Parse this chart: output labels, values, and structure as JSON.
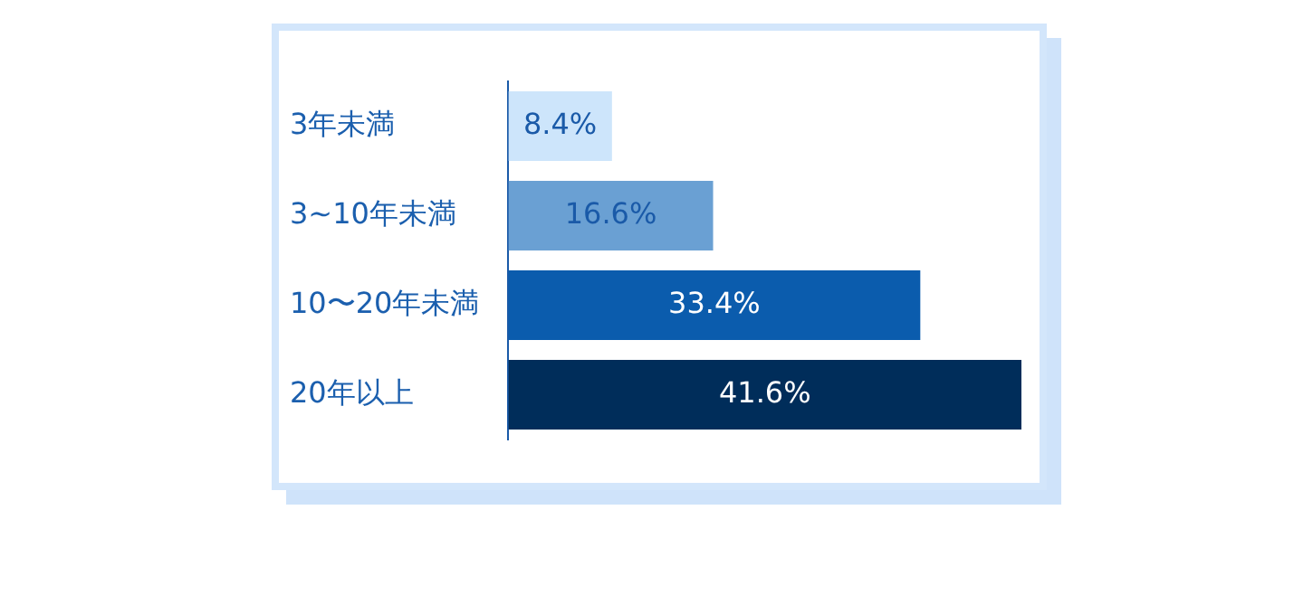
{
  "chart_data": {
    "type": "bar",
    "orientation": "horizontal",
    "categories": [
      "3年未満",
      "3~10年未満",
      "10〜20年未満",
      "20年以上"
    ],
    "values": [
      8.4,
      16.6,
      33.4,
      41.6
    ],
    "colors": [
      "#cde5fb",
      "#6aa0d3",
      "#0b5cad",
      "#002d5a"
    ],
    "value_labels": [
      "8.4%",
      "16.6%",
      "33.4%",
      "41.6%"
    ],
    "legend": false
  }
}
